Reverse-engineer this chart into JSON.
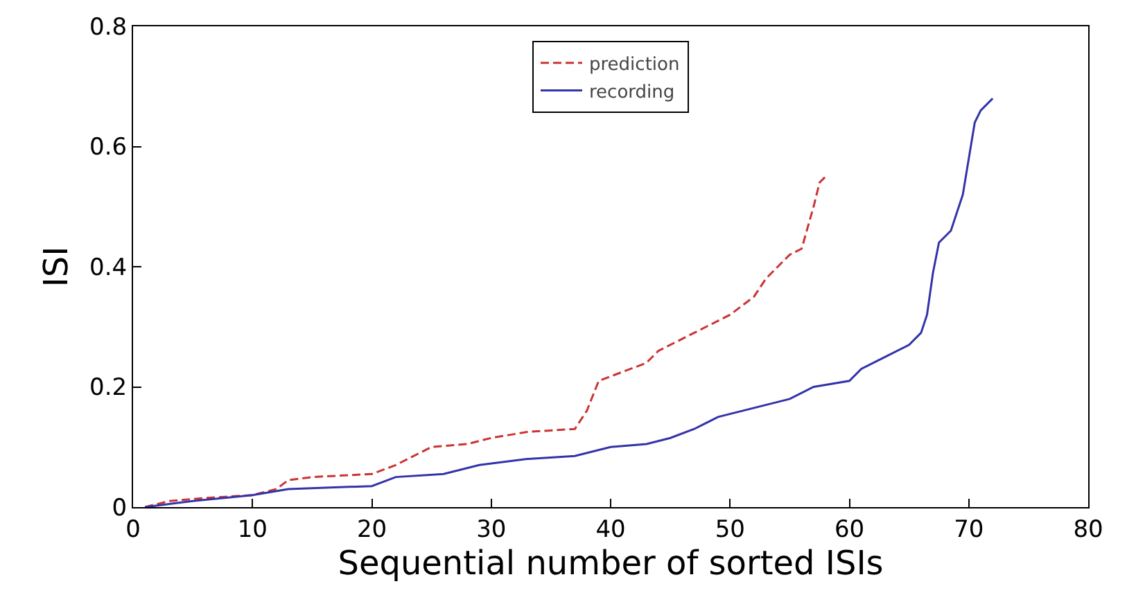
{
  "chart_data": {
    "type": "line",
    "xlabel": "Sequential number of sorted ISIs",
    "ylabel": "ISI",
    "xlim": [
      0,
      80
    ],
    "xticks": [
      0,
      10,
      20,
      30,
      40,
      50,
      60,
      70,
      80
    ],
    "ylim": [
      0,
      0.8
    ],
    "yticks": [
      {
        "value": 0,
        "label": "0"
      },
      {
        "value": 0.2,
        "label": "0.2"
      },
      {
        "value": 0.4,
        "label": "0.4"
      },
      {
        "value": 0.6,
        "label": "0.6"
      },
      {
        "value": 0.8,
        "label": "0.8"
      }
    ],
    "grid": false,
    "legend": "top",
    "marker": "none",
    "series": [
      {
        "name": "prediction",
        "color": "#cc3333",
        "line_style": "dashed",
        "x": [
          1,
          3,
          6,
          10,
          12,
          13,
          15,
          20,
          22,
          24,
          25,
          28,
          30,
          33,
          37,
          38,
          39,
          41,
          43,
          44,
          46,
          48,
          50,
          52,
          53,
          55,
          56,
          57,
          57.5,
          58
        ],
        "values": [
          0,
          0.01,
          0.015,
          0.02,
          0.03,
          0.045,
          0.05,
          0.055,
          0.07,
          0.09,
          0.1,
          0.105,
          0.115,
          0.125,
          0.13,
          0.16,
          0.21,
          0.225,
          0.24,
          0.26,
          0.28,
          0.3,
          0.32,
          0.35,
          0.38,
          0.42,
          0.43,
          0.5,
          0.54,
          0.55
        ]
      },
      {
        "name": "recording",
        "color": "#3333aa",
        "line_style": "solid",
        "x": [
          1,
          5,
          10,
          13,
          20,
          22,
          26,
          29,
          33,
          37,
          40,
          43,
          45,
          47,
          49,
          52,
          55,
          57,
          60,
          61,
          63,
          65,
          66,
          66.5,
          67,
          67.5,
          68.5,
          69.5,
          70,
          70.5,
          71,
          72
        ],
        "values": [
          0,
          0.01,
          0.02,
          0.03,
          0.035,
          0.05,
          0.055,
          0.07,
          0.08,
          0.085,
          0.1,
          0.105,
          0.115,
          0.13,
          0.15,
          0.165,
          0.18,
          0.2,
          0.21,
          0.23,
          0.25,
          0.27,
          0.29,
          0.32,
          0.39,
          0.44,
          0.46,
          0.52,
          0.58,
          0.64,
          0.66,
          0.68
        ]
      }
    ]
  }
}
